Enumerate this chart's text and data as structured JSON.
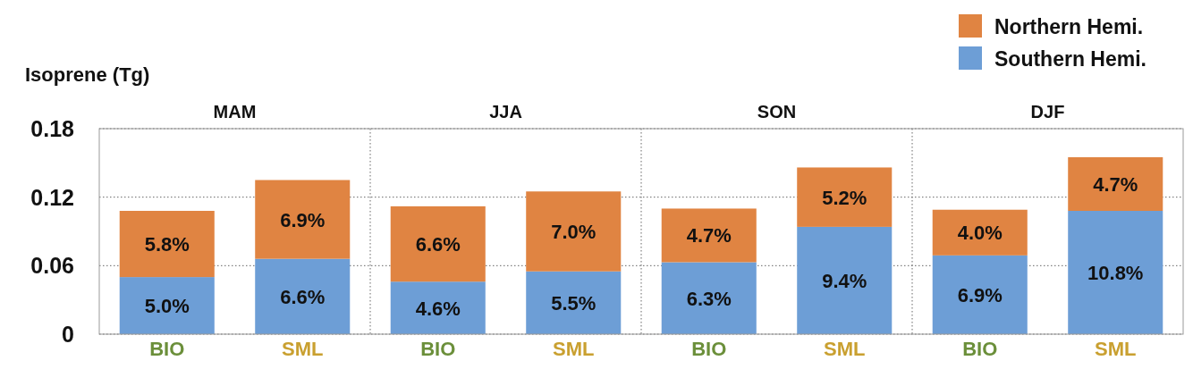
{
  "chart_data": {
    "type": "bar",
    "stacked": true,
    "ylabel": "Isoprene (Tg)",
    "categories": [
      "BIO",
      "SML",
      "BIO",
      "SML",
      "BIO",
      "SML",
      "BIO",
      "SML"
    ],
    "annotations": [
      "MAM",
      "JJA",
      "SON",
      "DJF"
    ],
    "series": [
      {
        "name": "Southern Hemi.",
        "color": "#6d9ed6",
        "values": [
          0.05,
          0.066,
          0.046,
          0.055,
          0.063,
          0.094,
          0.069,
          0.108
        ],
        "value_labels": [
          "5.0%",
          "6.6%",
          "4.6%",
          "5.5%",
          "6.3%",
          "9.4%",
          "6.9%",
          "10.8%"
        ]
      },
      {
        "name": "Northern Hemi.",
        "color": "#e08442",
        "values": [
          0.058,
          0.069,
          0.066,
          0.07,
          0.047,
          0.052,
          0.04,
          0.047
        ],
        "value_labels": [
          "5.8%",
          "6.9%",
          "6.6%",
          "7.0%",
          "4.7%",
          "5.2%",
          "4.0%",
          "4.7%"
        ]
      }
    ],
    "ylim": [
      0,
      0.18
    ],
    "yticks": [
      0,
      0.06,
      0.12,
      0.18
    ],
    "grid": "y",
    "legend": "top right"
  }
}
